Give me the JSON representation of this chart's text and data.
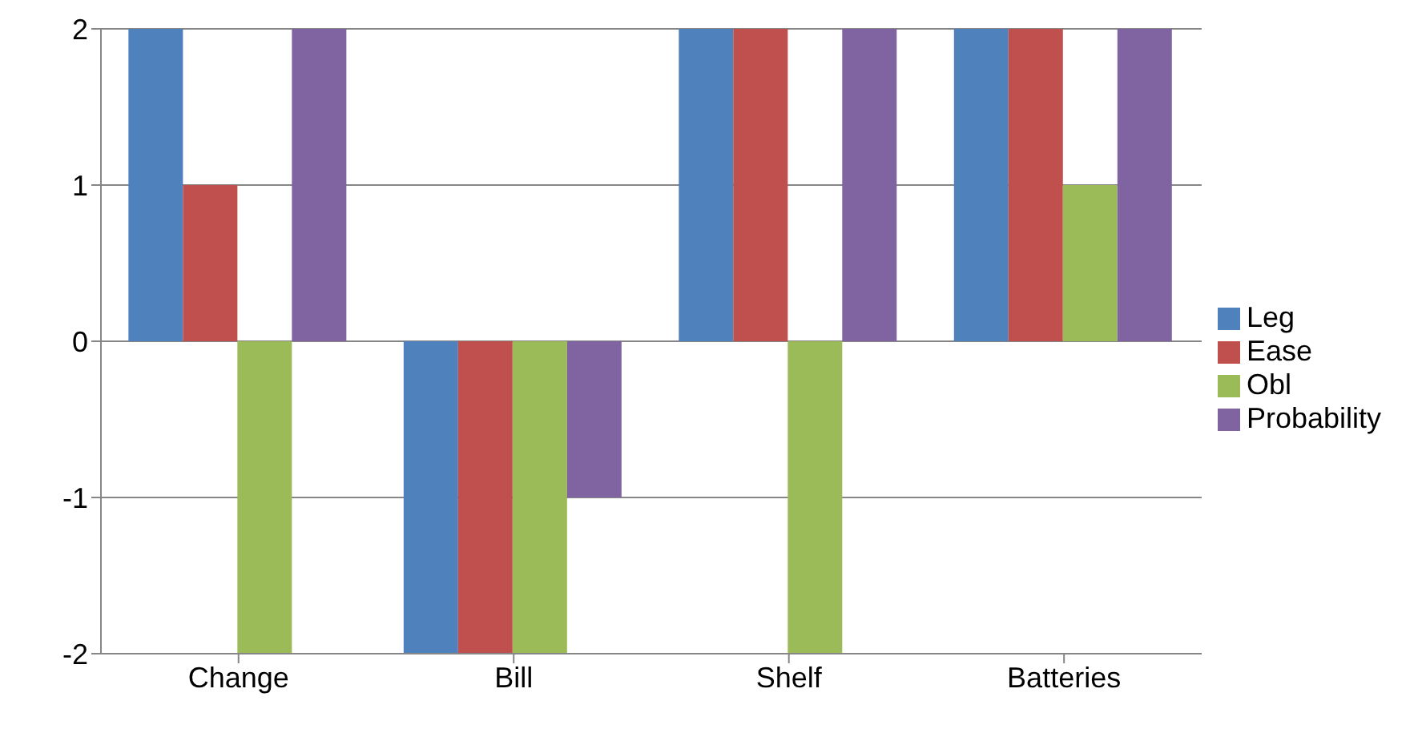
{
  "chart_data": {
    "type": "bar",
    "categories": [
      "Change",
      "Bill",
      "Shelf",
      "Batteries"
    ],
    "series": [
      {
        "name": "Leg",
        "color": "#4f81bd",
        "values": [
          2,
          -2,
          2,
          2
        ]
      },
      {
        "name": "Ease",
        "color": "#c0504d",
        "values": [
          1,
          -2,
          2,
          2
        ]
      },
      {
        "name": "Obl",
        "color": "#9bbb59",
        "values": [
          -2,
          -2,
          -2,
          1
        ]
      },
      {
        "name": "Probability",
        "color": "#8064a2",
        "values": [
          2,
          -1,
          2,
          2
        ]
      }
    ],
    "ylim": [
      -2,
      2
    ],
    "yticks": [
      -2,
      -1,
      0,
      1,
      2
    ],
    "grid": "y",
    "legend": "right"
  }
}
